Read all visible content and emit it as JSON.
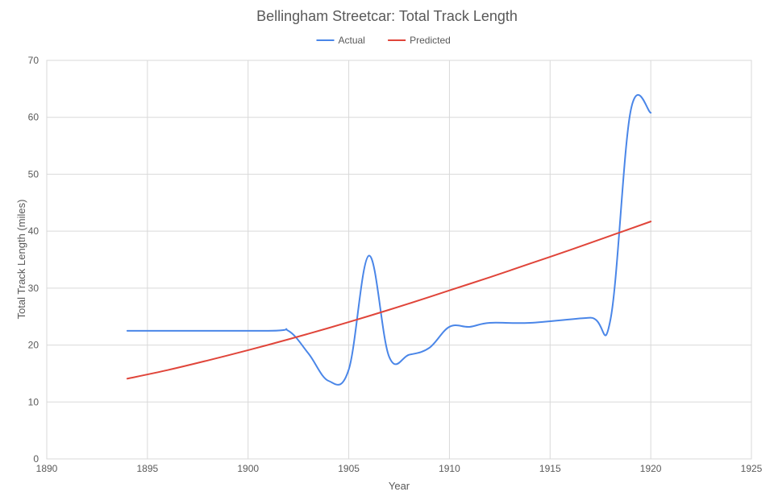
{
  "chart_data": {
    "type": "line",
    "title": "Bellingham Streetcar: Total Track Length",
    "xlabel": "Year",
    "ylabel": "Total Track Length (miles)",
    "xlim": [
      1890,
      1925
    ],
    "ylim": [
      0,
      70
    ],
    "xticks": [
      1890,
      1895,
      1900,
      1905,
      1910,
      1915,
      1920,
      1925
    ],
    "yticks": [
      0,
      10,
      20,
      30,
      40,
      50,
      60,
      70
    ],
    "grid": true,
    "legend_position": "top",
    "series": [
      {
        "name": "Actual",
        "color": "#4a86e8",
        "smooth": true,
        "x": [
          1894,
          1901,
          1902,
          1903,
          1904,
          1905,
          1906,
          1907,
          1908,
          1909,
          1910,
          1911,
          1912,
          1914,
          1917,
          1918,
          1919,
          1920
        ],
        "y": [
          22.5,
          22.5,
          22.5,
          18.5,
          13.7,
          15.7,
          35.7,
          18.0,
          18.3,
          19.5,
          23.2,
          23.2,
          23.9,
          23.9,
          24.8,
          24.5,
          61.1,
          60.8
        ]
      },
      {
        "name": "Predicted",
        "color": "#e0453a",
        "smooth": false,
        "x": [
          1894,
          1896,
          1898,
          1900,
          1902,
          1904,
          1906,
          1908,
          1910,
          1912,
          1914,
          1916,
          1918,
          1920
        ],
        "y": [
          14.1,
          15.6,
          17.3,
          19.1,
          21.0,
          23.0,
          25.1,
          27.3,
          29.6,
          31.9,
          34.3,
          36.7,
          39.2,
          41.7
        ]
      }
    ]
  }
}
